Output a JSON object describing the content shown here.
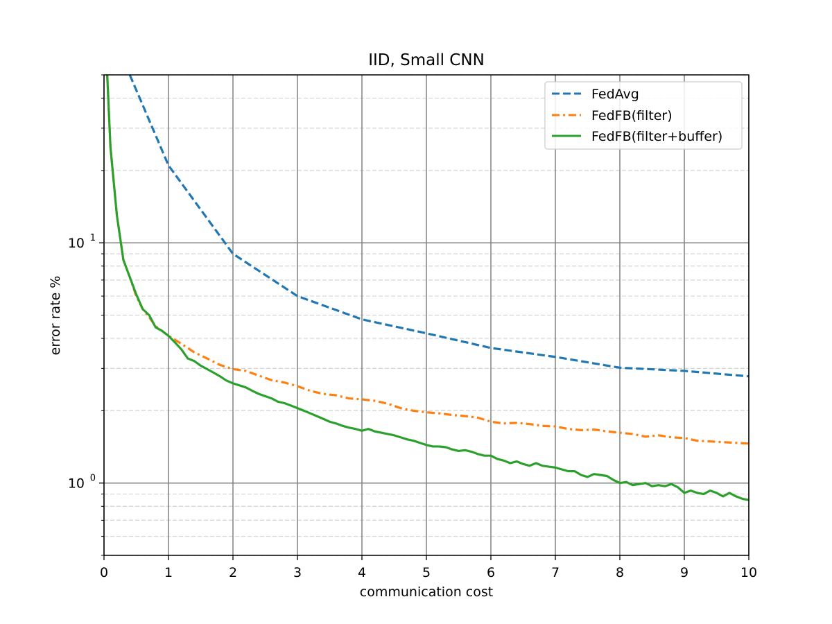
{
  "chart_data": {
    "type": "line",
    "title": "IID, Small CNN",
    "xlabel": "communication cost",
    "ylabel": "error rate %",
    "xlim": [
      0,
      10
    ],
    "ylim": [
      0.5,
      50
    ],
    "yscale": "log",
    "grid": true,
    "legend_position": "top-right",
    "x_ticks": [
      "0",
      "1",
      "2",
      "3",
      "4",
      "5",
      "6",
      "7",
      "8",
      "9",
      "10"
    ],
    "y_ticks": [
      {
        "value": 1,
        "base": "10",
        "exp": "0"
      },
      {
        "value": 10,
        "base": "10",
        "exp": "1"
      }
    ],
    "series": [
      {
        "name": "FedAvg",
        "color": "#1f77b4",
        "style": "dashed",
        "x": [
          0.4,
          1,
          2,
          3,
          4,
          5,
          6,
          7,
          8,
          9,
          10
        ],
        "y": [
          50,
          21,
          9.0,
          6.0,
          4.8,
          4.2,
          3.65,
          3.35,
          3.02,
          2.93,
          2.78
        ]
      },
      {
        "name": "FedFB(filter)",
        "color": "#ff7f0e",
        "style": "dashdot",
        "x": [
          0.05,
          0.1,
          0.2,
          0.3,
          0.4,
          0.5,
          0.6,
          0.7,
          0.8,
          1.0,
          1.2,
          1.4,
          1.6,
          1.8,
          2.0,
          2.2,
          2.4,
          2.6,
          2.8,
          3.0,
          3.2,
          3.4,
          3.6,
          3.8,
          4.0,
          4.2,
          4.4,
          4.6,
          4.8,
          5.0,
          5.2,
          5.4,
          5.6,
          5.8,
          6.0,
          6.2,
          6.4,
          6.6,
          6.8,
          7.0,
          7.2,
          7.4,
          7.6,
          7.8,
          8.0,
          8.2,
          8.4,
          8.6,
          8.8,
          9.0,
          9.2,
          9.4,
          9.6,
          9.8,
          10.0
        ],
        "y": [
          50,
          25,
          13,
          8.5,
          7.2,
          6.0,
          5.3,
          4.9,
          4.5,
          4.1,
          3.8,
          3.5,
          3.3,
          3.1,
          2.98,
          2.93,
          2.8,
          2.68,
          2.62,
          2.53,
          2.42,
          2.35,
          2.32,
          2.25,
          2.23,
          2.2,
          2.14,
          2.05,
          2.0,
          1.97,
          1.95,
          1.92,
          1.9,
          1.87,
          1.8,
          1.77,
          1.78,
          1.76,
          1.73,
          1.72,
          1.68,
          1.66,
          1.67,
          1.64,
          1.62,
          1.6,
          1.56,
          1.58,
          1.55,
          1.54,
          1.5,
          1.49,
          1.48,
          1.47,
          1.46
        ]
      },
      {
        "name": "FedFB(filter+buffer)",
        "color": "#2ca02c",
        "style": "solid",
        "x": [
          0.05,
          0.1,
          0.2,
          0.3,
          0.4,
          0.5,
          0.6,
          0.7,
          0.8,
          0.9,
          1.0,
          1.1,
          1.2,
          1.3,
          1.4,
          1.5,
          1.6,
          1.7,
          1.8,
          1.9,
          2.0,
          2.1,
          2.2,
          2.3,
          2.4,
          2.5,
          2.6,
          2.7,
          2.8,
          2.9,
          3.0,
          3.1,
          3.2,
          3.3,
          3.4,
          3.5,
          3.6,
          3.7,
          3.8,
          3.9,
          4.0,
          4.1,
          4.2,
          4.3,
          4.4,
          4.5,
          4.6,
          4.7,
          4.8,
          4.9,
          5.0,
          5.1,
          5.2,
          5.3,
          5.4,
          5.5,
          5.6,
          5.7,
          5.8,
          5.9,
          6.0,
          6.1,
          6.2,
          6.3,
          6.4,
          6.5,
          6.6,
          6.7,
          6.8,
          6.9,
          7.0,
          7.1,
          7.2,
          7.3,
          7.4,
          7.5,
          7.6,
          7.7,
          7.8,
          7.9,
          8.0,
          8.1,
          8.2,
          8.3,
          8.4,
          8.5,
          8.6,
          8.7,
          8.8,
          8.9,
          9.0,
          9.1,
          9.2,
          9.3,
          9.4,
          9.5,
          9.6,
          9.7,
          9.8,
          9.9,
          10.0
        ],
        "y": [
          50,
          25,
          13,
          8.5,
          7.2,
          6.1,
          5.3,
          5.0,
          4.45,
          4.3,
          4.1,
          3.85,
          3.6,
          3.3,
          3.22,
          3.08,
          2.98,
          2.88,
          2.78,
          2.67,
          2.6,
          2.55,
          2.5,
          2.42,
          2.35,
          2.3,
          2.25,
          2.18,
          2.15,
          2.1,
          2.05,
          2.0,
          1.95,
          1.9,
          1.85,
          1.8,
          1.77,
          1.73,
          1.7,
          1.68,
          1.65,
          1.68,
          1.64,
          1.62,
          1.6,
          1.58,
          1.55,
          1.52,
          1.5,
          1.47,
          1.44,
          1.42,
          1.42,
          1.41,
          1.38,
          1.36,
          1.37,
          1.35,
          1.32,
          1.3,
          1.3,
          1.26,
          1.24,
          1.21,
          1.23,
          1.2,
          1.18,
          1.21,
          1.18,
          1.17,
          1.16,
          1.14,
          1.12,
          1.12,
          1.08,
          1.06,
          1.09,
          1.08,
          1.07,
          1.03,
          1.0,
          1.01,
          0.98,
          0.99,
          1.0,
          0.97,
          0.98,
          0.97,
          0.99,
          0.96,
          0.91,
          0.93,
          0.91,
          0.9,
          0.93,
          0.91,
          0.88,
          0.91,
          0.88,
          0.86,
          0.85
        ]
      }
    ]
  }
}
